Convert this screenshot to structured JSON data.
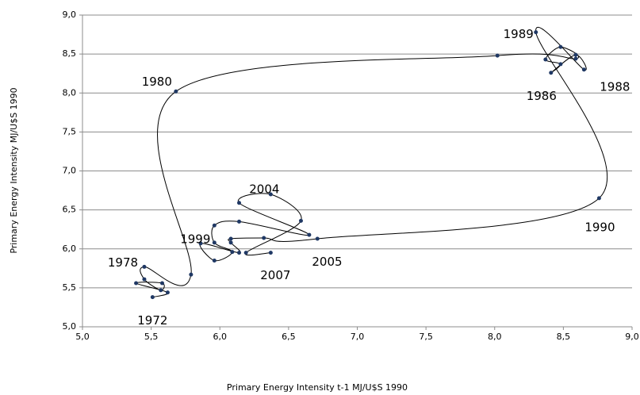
{
  "chart_data": {
    "type": "scatter",
    "xlabel": "Primary Energy Intensity t-1 MJ/U$S 1990",
    "ylabel": "Primary Energy Intensity MJ/U$S 1990",
    "x": [
      5.51,
      5.62,
      5.39,
      5.58,
      5.57,
      5.45,
      5.45,
      5.79,
      5.68,
      8.02,
      8.59,
      8.48,
      8.37,
      8.48,
      8.41,
      8.59,
      8.65,
      8.3,
      8.76,
      6.71,
      6.32,
      6.08,
      6.08,
      6.14,
      5.86,
      5.96,
      6.09,
      5.96,
      5.96,
      6.14,
      6.65,
      6.14,
      6.37,
      6.59,
      6.19,
      6.37
    ],
    "y": [
      5.38,
      5.44,
      5.56,
      5.56,
      5.47,
      5.61,
      5.77,
      5.67,
      8.02,
      8.48,
      8.44,
      8.59,
      8.43,
      8.37,
      8.26,
      8.49,
      8.3,
      8.78,
      6.65,
      6.13,
      6.14,
      6.13,
      6.08,
      5.95,
      6.07,
      5.85,
      5.96,
      6.08,
      6.3,
      6.35,
      6.18,
      6.59,
      6.7,
      6.36,
      5.95,
      5.95
    ],
    "point_labels": [
      "1972",
      null,
      null,
      null,
      null,
      null,
      "1978",
      null,
      "1980",
      null,
      null,
      null,
      null,
      null,
      "1986",
      null,
      "1988",
      "1989",
      "1990",
      null,
      null,
      null,
      null,
      null,
      null,
      null,
      null,
      "1999",
      null,
      null,
      null,
      null,
      "2004",
      "2005",
      null,
      "2007"
    ],
    "color": "#1f3864",
    "line_color": "#000000",
    "smooth": true,
    "xlim": [
      5,
      9
    ],
    "xticks": [
      {
        "value": 5,
        "label": "5,0"
      },
      {
        "value": 5.5,
        "label": "5,5"
      },
      {
        "value": 6,
        "label": "6,0"
      },
      {
        "value": 6.5,
        "label": "6,5"
      },
      {
        "value": 7,
        "label": "7,0"
      },
      {
        "value": 7.5,
        "label": "7,5"
      },
      {
        "value": 8,
        "label": "8,0"
      },
      {
        "value": 8.5,
        "label": "8,5"
      },
      {
        "value": 9,
        "label": "9,0"
      }
    ],
    "ylim": [
      5,
      9
    ],
    "yticks": [
      {
        "value": 5,
        "label": "5,0"
      },
      {
        "value": 5.5,
        "label": "5,5"
      },
      {
        "value": 6,
        "label": "6,0"
      },
      {
        "value": 6.5,
        "label": "6,5"
      },
      {
        "value": 7,
        "label": "7,0"
      },
      {
        "value": 7.5,
        "label": "7,5"
      },
      {
        "value": 8,
        "label": "8,0"
      },
      {
        "value": 8.5,
        "label": "8,5"
      },
      {
        "value": 9,
        "label": "9,0"
      }
    ],
    "grid": true
  }
}
